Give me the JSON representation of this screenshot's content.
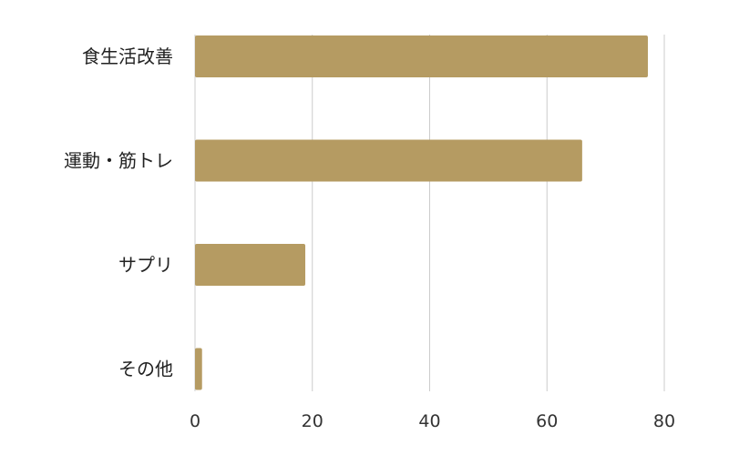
{
  "chart_data": {
    "type": "bar",
    "orientation": "horizontal",
    "categories": [
      "食生活改善",
      "運動・筋トレ",
      "サプリ",
      "その他"
    ],
    "values": [
      77.2,
      66,
      18.8,
      1.2
    ],
    "xlim": [
      0,
      80
    ],
    "xticks": [
      0,
      20,
      40,
      60,
      80
    ],
    "tick_labels": [
      "0",
      "20",
      "40",
      "60",
      "80"
    ],
    "grid": "vertical",
    "bar_color": "#b59b62",
    "grid_color": "#cccccc",
    "title": "",
    "xlabel": "",
    "ylabel": ""
  }
}
